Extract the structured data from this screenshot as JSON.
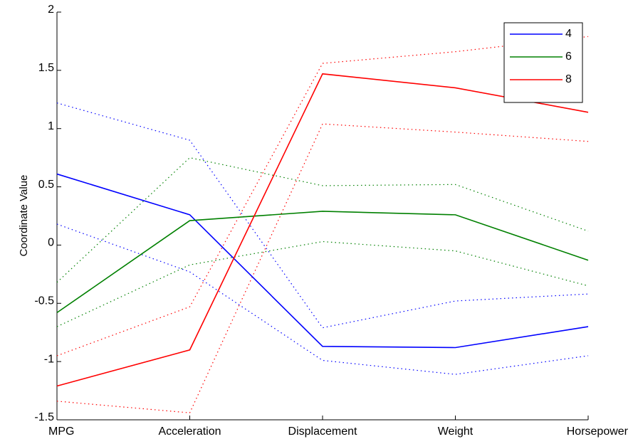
{
  "chart_data": {
    "type": "parallel-coordinates",
    "y_label": "Coordinate Value",
    "categories": [
      "MPG",
      "Acceleration",
      "Displacement",
      "Weight",
      "Horsepower"
    ],
    "series": [
      {
        "name": "4",
        "color": "#0000ff",
        "values": [
          0.61,
          0.26,
          -0.87,
          -0.88,
          -0.7
        ],
        "upper": [
          1.22,
          0.9,
          -0.71,
          -0.48,
          -0.42
        ],
        "lower": [
          0.18,
          -0.23,
          -0.99,
          -1.11,
          -0.95
        ]
      },
      {
        "name": "6",
        "color": "#008000",
        "values": [
          -0.58,
          0.21,
          0.29,
          0.26,
          -0.13
        ],
        "upper": [
          -0.32,
          0.75,
          0.51,
          0.52,
          0.12
        ],
        "lower": [
          -0.7,
          -0.17,
          0.03,
          -0.05,
          -0.35
        ]
      },
      {
        "name": "8",
        "color": "#ff0000",
        "values": [
          -1.21,
          -0.9,
          1.47,
          1.35,
          1.14
        ],
        "upper": [
          -0.95,
          -0.53,
          1.56,
          1.66,
          1.79
        ],
        "lower": [
          -1.34,
          -1.44,
          1.04,
          0.97,
          0.89
        ]
      }
    ],
    "ylim": [
      -1.5,
      2
    ],
    "yticks": [
      -1.5,
      -1,
      -0.5,
      0,
      0.5,
      1,
      1.5,
      2
    ],
    "legend": "upper right",
    "grid": false
  }
}
